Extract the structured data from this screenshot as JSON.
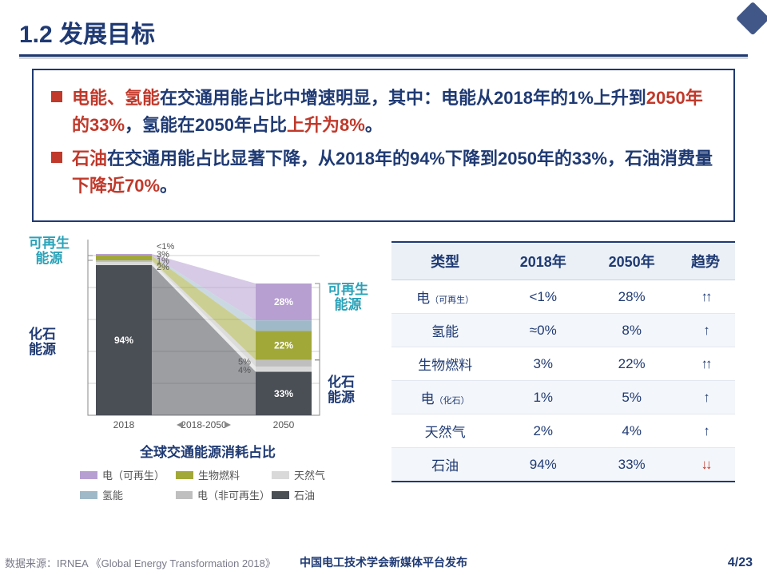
{
  "title": "1.2 发展目标",
  "bullets": {
    "b1_a": "电能、氢能",
    "b1_b": "在交通用能占比中增速明显，其中：电能从2018年的1%上升到",
    "b1_c": "2050年的33%",
    "b1_d": "，氢能在2050年占比",
    "b1_e": "上升为8%",
    "b1_f": "。",
    "b2_a": "石油",
    "b2_b": "在交通用能占比显著下降，从2018年的94%下降到2050年的33%，石油消费量",
    "b2_c": "下降近70%",
    "b2_d": "。"
  },
  "chart": {
    "type": "stacked-bar-area",
    "x_labels": [
      "2018",
      "2018-2050",
      "2050"
    ],
    "subtitle": "全球交通能源消耗占比",
    "side_labels": {
      "renew_left": "可再生\n能源",
      "fossil_left": "化石\n能源",
      "renew_right": "可再生\n能源",
      "fossil_right": "化石\n能源"
    },
    "colors": {
      "elec_renew": "#b79fd1",
      "hydrogen": "#9fb9c8",
      "biofuel": "#a2a838",
      "elec_fossil": "#bfbfbf",
      "natgas": "#d9d9d9",
      "oil": "#4a4e55",
      "grid": "#d0d0d0",
      "axis": "#888"
    },
    "bar2018": {
      "total_h": 200,
      "segments": [
        {
          "name": "elec_renew",
          "pct": 1,
          "label": "<1%"
        },
        {
          "name": "hydrogen",
          "pct": 0,
          "label": ""
        },
        {
          "name": "biofuel",
          "pct": 3,
          "label": "3%"
        },
        {
          "name": "elec_fossil",
          "pct": 1,
          "label": "1%"
        },
        {
          "name": "natgas",
          "pct": 2,
          "label": "2%"
        },
        {
          "name": "oil",
          "pct": 94,
          "label": "94%"
        }
      ]
    },
    "bar2050": {
      "total_h": 165,
      "segments": [
        {
          "name": "elec_renew",
          "pct": 28,
          "label": "28%"
        },
        {
          "name": "hydrogen",
          "pct": 8,
          "label": "8%"
        },
        {
          "name": "biofuel",
          "pct": 22,
          "label": "22%"
        },
        {
          "name": "elec_fossil",
          "pct": 5,
          "label": "5%"
        },
        {
          "name": "natgas",
          "pct": 4,
          "label": "4%"
        },
        {
          "name": "oil",
          "pct": 33,
          "label": "33%"
        }
      ]
    },
    "legend": [
      {
        "color": "#b79fd1",
        "label": "电（可再生）"
      },
      {
        "color": "#a2a838",
        "label": "生物燃料"
      },
      {
        "color": "#d9d9d9",
        "label": "天然气"
      },
      {
        "color": "#9fb9c8",
        "label": "氢能"
      },
      {
        "color": "#bfbfbf",
        "label": "电（非可再生）"
      },
      {
        "color": "#4a4e55",
        "label": "石油"
      }
    ]
  },
  "table": {
    "headers": [
      "类型",
      "2018年",
      "2050年",
      "趋势"
    ],
    "rows": [
      {
        "type": "电",
        "sub": "（可再生）",
        "y2018": "<1%",
        "y2050": "28%",
        "trend": "up2"
      },
      {
        "type": "氢能",
        "sub": "",
        "y2018": "≈0%",
        "y2050": "8%",
        "trend": "up1"
      },
      {
        "type": "生物燃料",
        "sub": "",
        "y2018": "3%",
        "y2050": "22%",
        "trend": "up2"
      },
      {
        "type": "电",
        "sub": "（化石）",
        "y2018": "1%",
        "y2050": "5%",
        "trend": "up1"
      },
      {
        "type": "天然气",
        "sub": "",
        "y2018": "2%",
        "y2050": "4%",
        "trend": "up1"
      },
      {
        "type": "石油",
        "sub": "",
        "y2018": "94%",
        "y2050": "33%",
        "trend": "dn2"
      }
    ]
  },
  "footer": {
    "source": "数据来源：IRNEA 《Global Energy Transformation 2018》",
    "publisher": "中国电工技术学会新媒体平台发布",
    "page": "4/23"
  }
}
